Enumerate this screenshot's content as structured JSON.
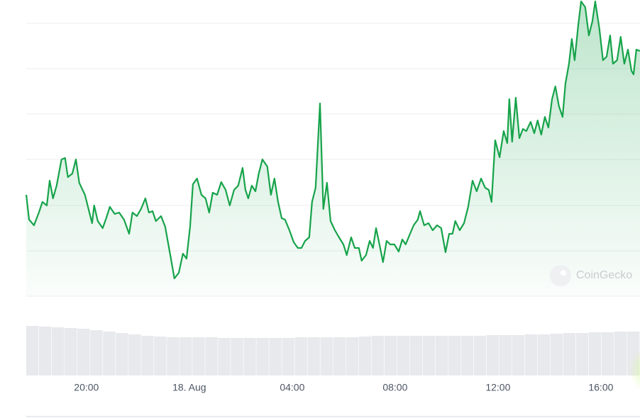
{
  "chart_data": {
    "type": "line",
    "color": "#16a34a",
    "grid": true,
    "xlim": [
      17.66,
      41.52
    ],
    "xticks": [
      {
        "value": 20,
        "label": "20:00"
      },
      {
        "value": 24,
        "label": "18. Aug"
      },
      {
        "value": 28,
        "label": "04:00"
      },
      {
        "value": 32,
        "label": "08:00"
      },
      {
        "value": 36,
        "label": "12:00"
      },
      {
        "value": 40,
        "label": "16:00"
      }
    ],
    "ylim": [
      0,
      417
    ],
    "yticks": [
      0,
      64,
      128,
      193,
      257,
      321,
      385
    ],
    "x": [
      17.66,
      17.77,
      17.96,
      18.15,
      18.29,
      18.46,
      18.57,
      18.7,
      18.84,
      19.03,
      19.17,
      19.28,
      19.45,
      19.59,
      19.72,
      19.94,
      20.22,
      20.3,
      20.44,
      20.63,
      20.77,
      20.91,
      21.1,
      21.27,
      21.46,
      21.66,
      21.79,
      21.96,
      22.12,
      22.29,
      22.43,
      22.57,
      22.7,
      22.9,
      23.06,
      23.26,
      23.42,
      23.59,
      23.75,
      23.89,
      24.03,
      24.14,
      24.3,
      24.47,
      24.63,
      24.77,
      24.91,
      25.08,
      25.24,
      25.41,
      25.57,
      25.74,
      25.9,
      26.07,
      26.18,
      26.29,
      26.43,
      26.57,
      26.7,
      26.84,
      27.03,
      27.17,
      27.31,
      27.45,
      27.59,
      27.72,
      27.89,
      28.06,
      28.22,
      28.36,
      28.5,
      28.66,
      28.77,
      28.91,
      29.08,
      29.21,
      29.35,
      29.49,
      29.66,
      29.82,
      29.99,
      30.12,
      30.29,
      30.43,
      30.59,
      30.7,
      30.87,
      31.01,
      31.14,
      31.26,
      31.39,
      31.53,
      31.67,
      31.81,
      31.97,
      32.14,
      32.28,
      32.41,
      32.58,
      32.72,
      32.88,
      32.97,
      33.13,
      33.3,
      33.46,
      33.63,
      33.79,
      33.96,
      34.1,
      34.23,
      34.34,
      34.51,
      34.68,
      34.84,
      35.01,
      35.17,
      35.34,
      35.5,
      35.64,
      35.75,
      35.89,
      36.06,
      36.22,
      36.36,
      36.44,
      36.55,
      36.69,
      36.83,
      36.97,
      37.1,
      37.27,
      37.41,
      37.54,
      37.68,
      37.82,
      37.96,
      38.1,
      38.23,
      38.37,
      38.51,
      38.62,
      38.76,
      38.87,
      38.98,
      39.12,
      39.23,
      39.39,
      39.53,
      39.67,
      39.78,
      39.94,
      40.08,
      40.22,
      40.36,
      40.47,
      40.63,
      40.77,
      40.91,
      41.05,
      41.19,
      41.27,
      41.38,
      41.52
    ],
    "values": [
      143,
      108,
      100,
      118,
      133,
      128,
      163,
      138,
      156,
      193,
      195,
      168,
      173,
      193,
      160,
      143,
      103,
      128,
      106,
      96,
      110,
      126,
      116,
      118,
      108,
      88,
      118,
      113,
      123,
      138,
      118,
      120,
      106,
      113,
      98,
      58,
      25,
      33,
      60,
      53,
      98,
      158,
      166,
      143,
      138,
      118,
      146,
      143,
      161,
      150,
      128,
      150,
      156,
      181,
      150,
      138,
      156,
      148,
      173,
      193,
      183,
      143,
      166,
      133,
      110,
      108,
      93,
      76,
      68,
      68,
      78,
      83,
      133,
      153,
      272,
      123,
      160,
      106,
      93,
      83,
      73,
      58,
      83,
      68,
      68,
      50,
      58,
      78,
      68,
      96,
      73,
      48,
      78,
      73,
      73,
      63,
      80,
      73,
      88,
      100,
      108,
      120,
      100,
      103,
      93,
      100,
      96,
      62,
      88,
      88,
      106,
      93,
      103,
      126,
      163,
      148,
      166,
      153,
      150,
      133,
      220,
      196,
      233,
      216,
      278,
      218,
      280,
      223,
      236,
      233,
      246,
      230,
      248,
      228,
      253,
      238,
      278,
      296,
      268,
      253,
      300,
      328,
      363,
      333,
      383,
      416,
      408,
      368,
      388,
      416,
      378,
      333,
      338,
      368,
      328,
      333,
      366,
      328,
      348,
      318,
      313,
      348,
      346
    ],
    "volume": {
      "color": "#e8e9ec",
      "ylim": [
        0,
        70
      ],
      "values": [
        70,
        69,
        68,
        67,
        66,
        64,
        62,
        60,
        58,
        56,
        55,
        54,
        54,
        54,
        54,
        53,
        53,
        53,
        53,
        53,
        53,
        54,
        54,
        54,
        54,
        54,
        55,
        56,
        56,
        56,
        56,
        56,
        56,
        56,
        56,
        56,
        57,
        57,
        57,
        58,
        58,
        59,
        60,
        60,
        61,
        61,
        62,
        62
      ]
    },
    "watermark": "CoinGecko"
  }
}
